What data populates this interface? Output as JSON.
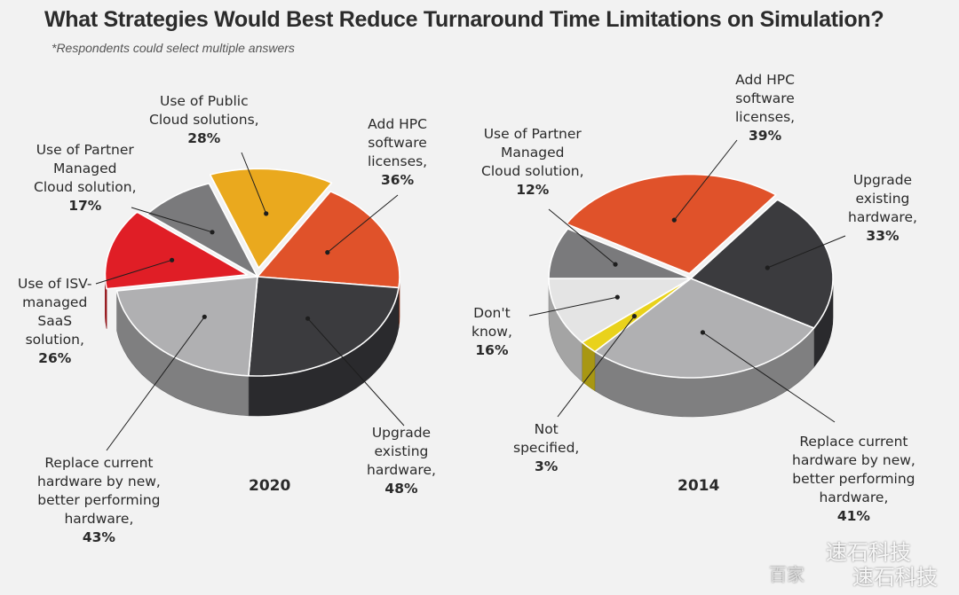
{
  "title": "What Strategies Would Best Reduce Turnaround Time Limitations on Simulation?",
  "subtitle": "*Respondents could select multiple answers",
  "watermark": {
    "line1": "速石科技",
    "line2_prefix": "百家",
    "line2": "速石科技"
  },
  "colors": {
    "hpc_licenses": "#e0522a",
    "upgrade_hardware": "#3b3b3e",
    "replace_hardware": "#b0b0b2",
    "isv_saas": "#e01e26",
    "partner_cloud": "#7a7a7c",
    "public_cloud": "#eaa91e",
    "dont_know": "#e4e4e4",
    "not_specified": "#e9d21b"
  },
  "chart_data": [
    {
      "type": "pie",
      "title": "2020",
      "slices": [
        {
          "key": "public_cloud",
          "label": "Use of Public\nCloud solutions,",
          "value": 28,
          "pct": "28%"
        },
        {
          "key": "hpc_licenses",
          "label": "Add HPC\nsoftware\nlicenses,",
          "value": 36,
          "pct": "36%"
        },
        {
          "key": "upgrade_hardware",
          "label": "Upgrade\nexisting\nhardware,",
          "value": 48,
          "pct": "48%"
        },
        {
          "key": "replace_hardware",
          "label": "Replace current\nhardware by new,\nbetter performing\nhardware,",
          "value": 43,
          "pct": "43%"
        },
        {
          "key": "isv_saas",
          "label": "Use of ISV-\nmanaged\nSaaS\nsolution,",
          "value": 26,
          "pct": "26%"
        },
        {
          "key": "partner_cloud",
          "label": "Use of Partner\nManaged\nCloud solution,",
          "value": 17,
          "pct": "17%"
        }
      ]
    },
    {
      "type": "pie",
      "title": "2014",
      "slices": [
        {
          "key": "hpc_licenses",
          "label": "Add HPC\nsoftware\nlicenses,",
          "value": 39,
          "pct": "39%"
        },
        {
          "key": "upgrade_hardware",
          "label": "Upgrade\nexisting\nhardware,",
          "value": 33,
          "pct": "33%"
        },
        {
          "key": "replace_hardware",
          "label": "Replace current\nhardware by new,\nbetter performing\nhardware,",
          "value": 41,
          "pct": "41%"
        },
        {
          "key": "not_specified",
          "label": "Not\nspecified,",
          "value": 3,
          "pct": "3%"
        },
        {
          "key": "dont_know",
          "label": "Don't\nknow,",
          "value": 16,
          "pct": "16%"
        },
        {
          "key": "partner_cloud",
          "label": "Use of Partner\nManaged\nCloud solution,",
          "value": 12,
          "pct": "12%"
        }
      ]
    }
  ]
}
